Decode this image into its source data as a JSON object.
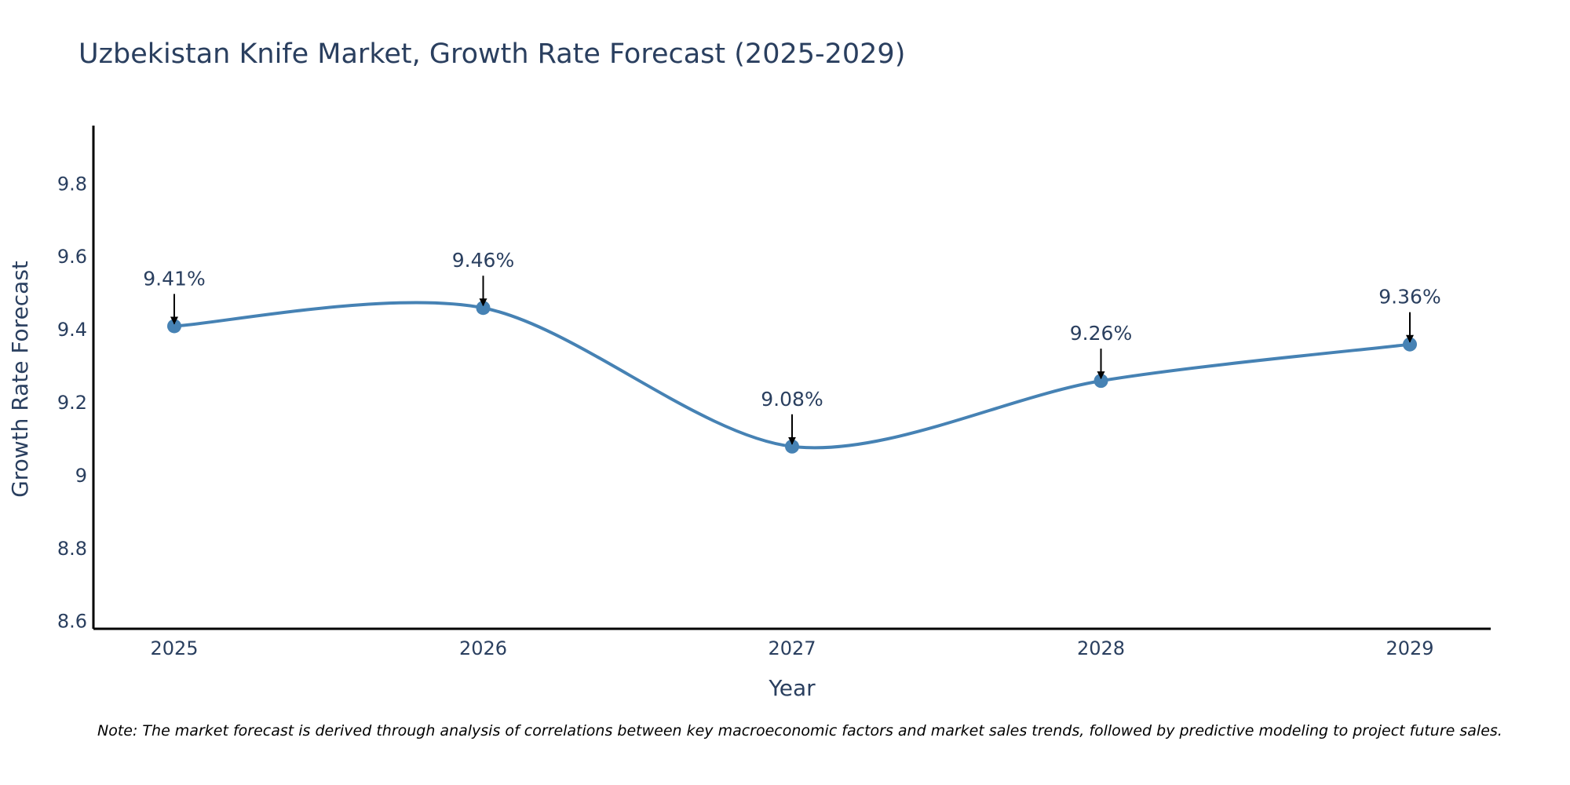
{
  "chart_data": {
    "type": "line",
    "title": "Uzbekistan Knife Market, Growth Rate Forecast (2025-2029)",
    "xlabel": "Year",
    "ylabel": "Growth Rate Forecast",
    "categories": [
      "2025",
      "2026",
      "2027",
      "2028",
      "2029"
    ],
    "series": [
      {
        "name": "Growth Rate Forecast",
        "values": [
          9.41,
          9.46,
          9.08,
          9.26,
          9.36
        ]
      }
    ],
    "data_labels": [
      "9.41%",
      "9.46%",
      "9.08%",
      "9.26%",
      "9.36%"
    ],
    "y_ticks": [
      8.6,
      8.8,
      9,
      9.2,
      9.4,
      9.6,
      9.8
    ],
    "y_tick_labels": [
      "8.6",
      "8.8",
      "9",
      "9.2",
      "9.4",
      "9.6",
      "9.8"
    ],
    "ylim": [
      8.58,
      9.96
    ],
    "grid": false,
    "line_shape": "spline",
    "color": "#4682b4"
  },
  "note": "Note: The market forecast is derived through analysis of correlations between key macroeconomic factors and market sales trends, followed by predictive modeling to project future sales."
}
